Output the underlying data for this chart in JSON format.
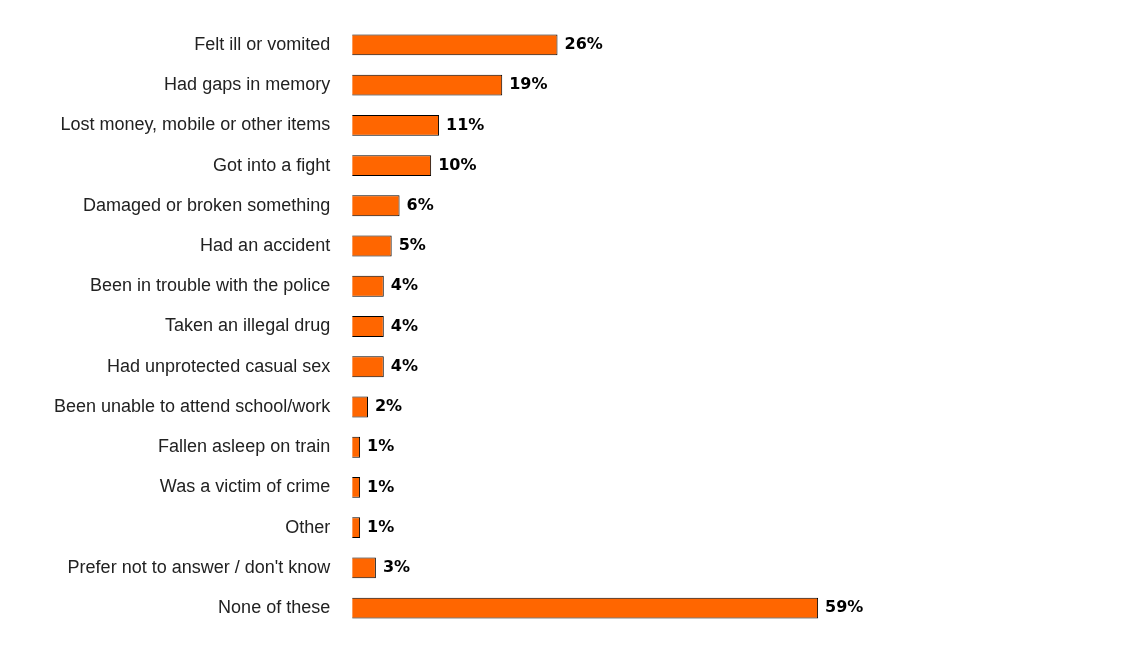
{
  "chart_data": {
    "type": "bar",
    "orientation": "horizontal",
    "categories": [
      "Felt ill or vomited",
      "Had gaps in memory",
      "Lost money, mobile or other items",
      "Got into a fight",
      "Damaged or broken something",
      "Had an accident",
      "Been in trouble with the police",
      "Taken an illegal drug",
      "Had unprotected casual sex",
      "Been unable to attend school/work",
      "Fallen asleep on train",
      "Was a victim of crime",
      "Other",
      "Prefer not to answer / don't know",
      "None of these"
    ],
    "values": [
      26,
      19,
      11,
      10,
      6,
      5,
      4,
      4,
      4,
      2,
      1,
      1,
      1,
      3,
      59
    ],
    "value_labels": [
      "26%",
      "19%",
      "11%",
      "10%",
      "6%",
      "5%",
      "4%",
      "4%",
      "4%",
      "2%",
      "1%",
      "1%",
      "1%",
      "3%",
      "59%"
    ],
    "color": "#ff6600"
  }
}
